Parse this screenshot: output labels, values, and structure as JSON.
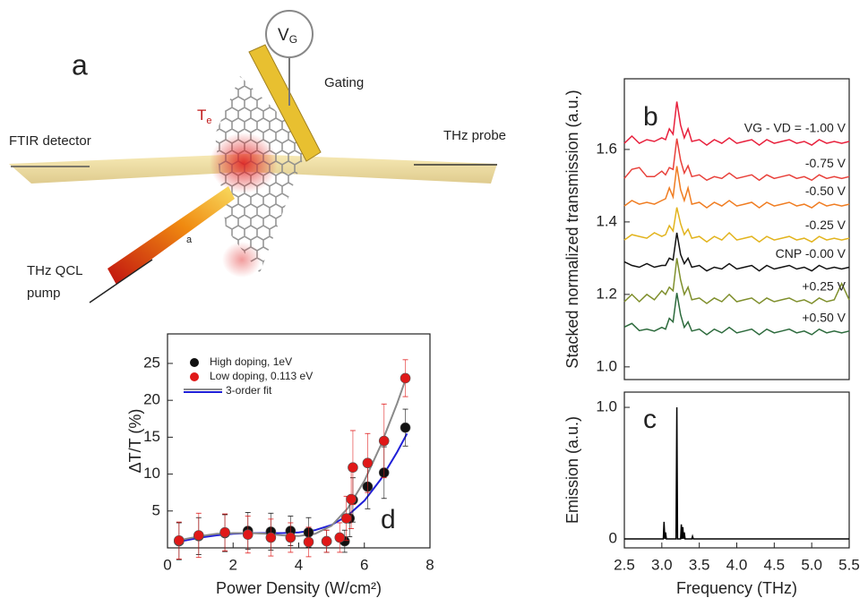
{
  "panel_a": {
    "label": "a",
    "gate_voltage": {
      "symbol": "V",
      "subscript": "G"
    },
    "gating": "Gating",
    "temperature": {
      "symbol": "T",
      "subscript": "e"
    },
    "detector": "FTIR detector",
    "probe": "THz probe",
    "pump": [
      "THz QCL",
      "pump"
    ],
    "angle": "a"
  },
  "chart_data": [
    {
      "type": "line",
      "label": "b",
      "ylabel": "Stacked normalized transmission (a.u.)",
      "xlim": [
        2.5,
        5.5
      ],
      "ylim": [
        0.965,
        1.795
      ],
      "yticks": [
        {
          "value": 1,
          "label": "1.0"
        },
        1.2,
        1.4,
        1.6
      ],
      "x": [
        2.5,
        2.6,
        2.7,
        2.8,
        2.9,
        3.0,
        3.05,
        3.1,
        3.15,
        3.2,
        3.25,
        3.3,
        3.35,
        3.4,
        3.5,
        3.6,
        3.7,
        3.8,
        3.9,
        4.0,
        4.1,
        4.2,
        4.3,
        4.4,
        4.5,
        4.6,
        4.7,
        4.8,
        4.9,
        5.0,
        5.1,
        5.2,
        5.3,
        5.4,
        5.5
      ],
      "series": [
        {
          "name": "VG - VD = -1.00 V",
          "color": "#e8203c",
          "values": [
            1.617,
            1.637,
            1.617,
            1.627,
            1.622,
            1.632,
            1.627,
            1.657,
            1.642,
            1.732,
            1.667,
            1.632,
            1.657,
            1.622,
            1.627,
            1.612,
            1.627,
            1.617,
            1.632,
            1.617,
            1.622,
            1.627,
            1.612,
            1.627,
            1.617,
            1.622,
            1.627,
            1.617,
            1.622,
            1.612,
            1.627,
            1.617,
            1.622,
            1.617,
            1.622
          ]
        },
        {
          "name": "-0.75 V",
          "color": "#e8403a",
          "values": [
            1.52,
            1.545,
            1.55,
            1.525,
            1.525,
            1.54,
            1.53,
            1.55,
            1.545,
            1.63,
            1.57,
            1.535,
            1.555,
            1.525,
            1.53,
            1.515,
            1.525,
            1.52,
            1.535,
            1.52,
            1.525,
            1.53,
            1.515,
            1.53,
            1.52,
            1.525,
            1.53,
            1.52,
            1.525,
            1.515,
            1.53,
            1.52,
            1.525,
            1.52,
            1.525
          ]
        },
        {
          "name": "-0.50 V",
          "color": "#f07d22",
          "values": [
            1.444,
            1.459,
            1.449,
            1.454,
            1.449,
            1.459,
            1.464,
            1.494,
            1.469,
            1.554,
            1.489,
            1.459,
            1.494,
            1.449,
            1.454,
            1.439,
            1.454,
            1.444,
            1.459,
            1.444,
            1.449,
            1.454,
            1.439,
            1.454,
            1.444,
            1.449,
            1.454,
            1.444,
            1.449,
            1.439,
            1.454,
            1.444,
            1.449,
            1.444,
            1.449
          ]
        },
        {
          "name": "-0.25 V",
          "color": "#e2b41e",
          "values": [
            1.35,
            1.365,
            1.36,
            1.355,
            1.37,
            1.36,
            1.365,
            1.39,
            1.375,
            1.44,
            1.395,
            1.365,
            1.38,
            1.355,
            1.36,
            1.345,
            1.36,
            1.35,
            1.37,
            1.35,
            1.355,
            1.36,
            1.345,
            1.36,
            1.35,
            1.355,
            1.36,
            1.35,
            1.355,
            1.345,
            1.36,
            1.35,
            1.355,
            1.35,
            1.355
          ]
        },
        {
          "name": "CNP -0.00 V",
          "color": "#111111",
          "values": [
            1.29,
            1.28,
            1.275,
            1.285,
            1.275,
            1.28,
            1.28,
            1.3,
            1.295,
            1.37,
            1.31,
            1.285,
            1.3,
            1.275,
            1.28,
            1.265,
            1.275,
            1.27,
            1.285,
            1.27,
            1.275,
            1.28,
            1.265,
            1.28,
            1.27,
            1.275,
            1.28,
            1.27,
            1.275,
            1.265,
            1.28,
            1.27,
            1.275,
            1.27,
            1.275
          ]
        },
        {
          "name": "+0.25 V",
          "color": "#7f8f2c",
          "values": [
            1.18,
            1.2,
            1.18,
            1.2,
            1.185,
            1.21,
            1.2,
            1.22,
            1.21,
            1.3,
            1.24,
            1.2,
            1.22,
            1.185,
            1.19,
            1.175,
            1.19,
            1.18,
            1.2,
            1.18,
            1.185,
            1.19,
            1.175,
            1.19,
            1.18,
            1.185,
            1.19,
            1.18,
            1.185,
            1.175,
            1.19,
            1.18,
            1.185,
            1.23,
            1.185
          ]
        },
        {
          "name": "+0.50 V",
          "color": "#2c6a3c",
          "values": [
            1.11,
            1.12,
            1.1,
            1.104,
            1.099,
            1.109,
            1.104,
            1.134,
            1.124,
            1.204,
            1.144,
            1.109,
            1.124,
            1.099,
            1.104,
            1.089,
            1.104,
            1.094,
            1.109,
            1.094,
            1.099,
            1.104,
            1.089,
            1.104,
            1.094,
            1.099,
            1.104,
            1.094,
            1.099,
            1.089,
            1.104,
            1.094,
            1.099,
            1.094,
            1.099
          ]
        }
      ]
    },
    {
      "type": "line",
      "label": "c",
      "ylabel": "Emission (a.u.)",
      "xlabel": "Frequency (THz)",
      "xlim": [
        2.5,
        5.5
      ],
      "ylim": [
        -0.068,
        1.116
      ],
      "xticks": [
        2.5,
        {
          "value": 3,
          "label": "3.0"
        },
        3.5,
        {
          "value": 4,
          "label": "4.0"
        },
        4.5,
        {
          "value": 5,
          "label": "5.0"
        },
        5.5
      ],
      "yticks": [
        0,
        {
          "value": 1,
          "label": "1.0"
        }
      ],
      "x": [
        2.5,
        3.02,
        3.03,
        3.04,
        3.05,
        3.06,
        3.19,
        3.2,
        3.21,
        3.25,
        3.26,
        3.27,
        3.28,
        3.29,
        3.3,
        3.31,
        3.4,
        3.41,
        3.42,
        5.5
      ],
      "series": [
        {
          "color": "#000000",
          "values": [
            0,
            0,
            0.13,
            0,
            0.05,
            0,
            0,
            1.0,
            0,
            0,
            0.11,
            0,
            0.09,
            0,
            0.05,
            0,
            0,
            0.02,
            0,
            0
          ]
        }
      ]
    },
    {
      "type": "scatter",
      "label": "d",
      "ylabel": "ΔT/T (%)",
      "xlabel": "Power Density (W/cm²)",
      "xlim": [
        0,
        8
      ],
      "ylim": [
        0,
        29
      ],
      "xticks": [
        0,
        2,
        4,
        6,
        8
      ],
      "yticks": [
        5,
        10,
        15,
        20,
        25
      ],
      "series": [
        {
          "name": "High doping, 1eV",
          "color": "#111111",
          "x": [
            0.35,
            0.95,
            1.75,
            2.45,
            3.15,
            3.75,
            4.3,
            4.85,
            5.4,
            5.55,
            5.65,
            6.1,
            6.6,
            7.25
          ],
          "values": [
            0.9,
            1.6,
            2.0,
            2.3,
            2.2,
            2.3,
            2.1,
            0.9,
            0.9,
            4.0,
            6.5,
            8.3,
            10.2,
            16.3
          ],
          "errors": [
            2.5,
            2.5,
            2.5,
            2.5,
            2.5,
            2.0,
            2.0,
            1.5,
            1.5,
            2.5,
            3.0,
            3.0,
            3.5,
            2.5
          ]
        },
        {
          "name": "Low doping, 0.113 eV",
          "color": "#e01818",
          "x": [
            0.35,
            0.95,
            1.75,
            2.45,
            3.15,
            3.75,
            4.3,
            4.85,
            5.25,
            5.45,
            5.6,
            5.65,
            6.1,
            6.6,
            7.25
          ],
          "values": [
            1.0,
            1.7,
            2.1,
            1.8,
            1.4,
            1.4,
            0.8,
            0.9,
            1.4,
            4.0,
            6.6,
            10.9,
            11.5,
            14.5,
            23.0
          ],
          "errors": [
            2.5,
            3.0,
            2.5,
            2.5,
            2.5,
            2.0,
            2.0,
            1.5,
            2.0,
            3.0,
            4.0,
            5.0,
            4.0,
            5.0,
            2.5
          ]
        }
      ],
      "fits": [
        {
          "name": "3-order fit",
          "color": "#1f1fd8",
          "x": [
            0.3,
            1,
            1.5,
            2,
            2.5,
            3,
            3.5,
            4,
            4.5,
            5,
            5.5,
            6,
            6.5,
            7,
            7.3
          ],
          "values": [
            0.8,
            1.4,
            1.7,
            1.9,
            2.0,
            2.0,
            2.0,
            2.1,
            2.4,
            3.1,
            4.4,
            6.4,
            9.3,
            13.0,
            15.5
          ]
        },
        {
          "color": "#8a8a8a",
          "x": [
            0.3,
            1,
            1.5,
            2,
            2.5,
            3,
            3.5,
            4,
            4.5,
            5,
            5.5,
            6,
            6.5,
            7,
            7.3
          ],
          "values": [
            1.0,
            1.6,
            1.9,
            2.0,
            2.0,
            1.9,
            1.7,
            1.6,
            1.9,
            3.0,
            5.4,
            9.1,
            13.9,
            19.6,
            23.4
          ]
        }
      ]
    }
  ]
}
